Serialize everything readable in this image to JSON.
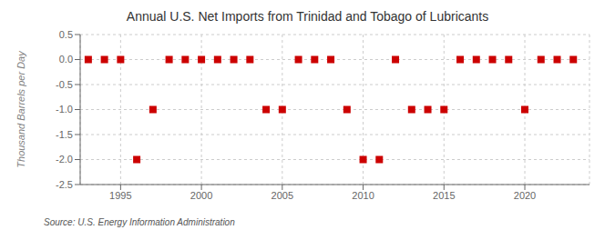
{
  "chart_data": {
    "type": "scatter",
    "title": "Annual U.S. Net Imports from Trinidad and Tobago of Lubricants",
    "y_label": "Thousand Barrels per Day",
    "annotations": [
      "Source: U.S. Energy Information Administration"
    ],
    "x": [
      1993,
      1994,
      1995,
      1996,
      1997,
      1998,
      1999,
      2000,
      2001,
      2002,
      2003,
      2004,
      2005,
      2006,
      2007,
      2008,
      2009,
      2010,
      2011,
      2012,
      2013,
      2014,
      2015,
      2016,
      2017,
      2018,
      2019,
      2020,
      2021,
      2022,
      2023
    ],
    "values": [
      0,
      0,
      0,
      -2,
      -1,
      0,
      0,
      0,
      0,
      0,
      0,
      -1,
      -1,
      0,
      0,
      0,
      -1,
      -2,
      -2,
      0,
      -1,
      -1,
      -1,
      0,
      0,
      0,
      0,
      -1,
      0,
      0,
      0
    ],
    "color": "#cc0000",
    "marker": "square",
    "xlim": [
      1992.5,
      2024
    ],
    "ylim": [
      -2.5,
      0.5
    ],
    "xticks": [
      1995,
      2000,
      2005,
      2010,
      2015,
      2020
    ],
    "yticks": [
      -2.5,
      {
        "value": -2,
        "label": "-2.0"
      },
      -1.5,
      {
        "value": -1,
        "label": "-1.0"
      },
      -0.5,
      {
        "value": 0,
        "label": "0.0"
      },
      0.5
    ],
    "grid": true
  }
}
